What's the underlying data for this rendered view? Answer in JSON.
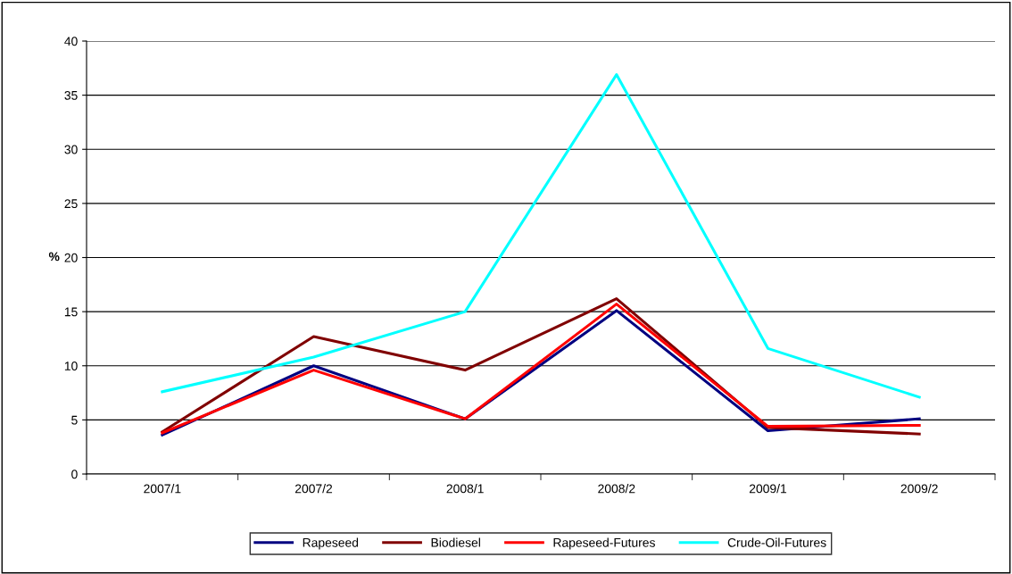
{
  "chart_data": {
    "type": "line",
    "ylabel": "%",
    "categories": [
      "2007/1",
      "2007/2",
      "2008/1",
      "2008/2",
      "2009/1",
      "2009/2"
    ],
    "series": [
      {
        "name": "Rapeseed",
        "color": "#000080",
        "values": [
          3.6,
          10.0,
          5.1,
          15.1,
          4.0,
          5.1
        ]
      },
      {
        "name": "Biodiesel",
        "color": "#800000",
        "values": [
          3.9,
          12.7,
          9.6,
          16.2,
          4.3,
          3.7
        ]
      },
      {
        "name": "Rapeseed-Futures",
        "color": "#ff0000",
        "values": [
          3.8,
          9.6,
          5.1,
          15.7,
          4.4,
          4.5
        ]
      },
      {
        "name": "Crude-Oil-Futures",
        "color": "#00ffff",
        "values": [
          7.6,
          10.8,
          15.0,
          36.9,
          11.6,
          7.1
        ]
      }
    ],
    "ylim": [
      0,
      40
    ],
    "yticks": [
      0,
      5,
      10,
      15,
      20,
      25,
      30,
      35,
      40
    ],
    "grid": "y",
    "legend": "bottom",
    "marker": "none",
    "line_style": "solid"
  }
}
